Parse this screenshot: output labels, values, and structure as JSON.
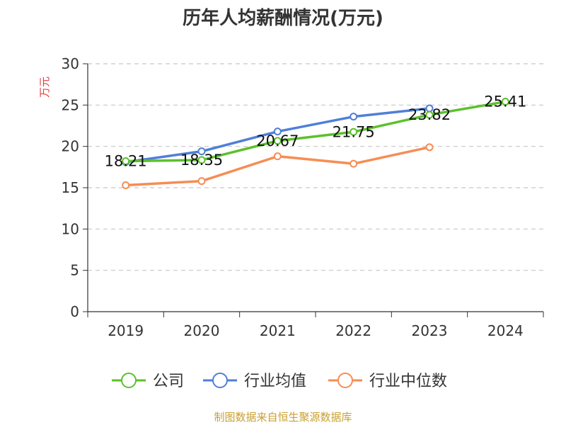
{
  "chart_data": {
    "type": "line",
    "title": "历年人均薪酬情况(万元)",
    "xlabel": "",
    "ylabel": "万元",
    "categories": [
      "2019",
      "2020",
      "2021",
      "2022",
      "2023",
      "2024"
    ],
    "ylim": [
      0,
      30
    ],
    "yticks": [
      0,
      5,
      10,
      15,
      20,
      25,
      30
    ],
    "grid": "horizontal-dashed",
    "legend": "bottom",
    "series": [
      {
        "name": "公司",
        "color": "#5bc12b",
        "values": [
          18.21,
          18.35,
          20.67,
          21.75,
          23.82,
          25.41
        ],
        "labels": [
          "18.21",
          "18.35",
          "20.67",
          "21.75",
          "23.82",
          "25.41"
        ]
      },
      {
        "name": "行业均值",
        "color": "#4f7fd8",
        "values": [
          18.1,
          19.4,
          21.8,
          23.6,
          24.6,
          null
        ]
      },
      {
        "name": "行业中位数",
        "color": "#f58d54",
        "values": [
          15.3,
          15.8,
          18.8,
          17.9,
          19.9,
          null
        ]
      }
    ],
    "source": "制图数据来自恒生聚源数据库"
  }
}
